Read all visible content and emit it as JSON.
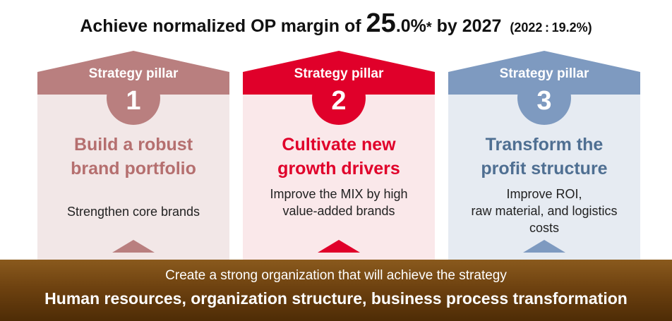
{
  "headline": {
    "lead": "Achieve normalized OP margin of ",
    "big_value": "25",
    "mid_value": ".0%",
    "footnote_mark": "*",
    "tail": " by 2027",
    "reference": "(2022 : 19.2%)"
  },
  "colors": {
    "pillar1": "#b97f7f",
    "pillar2": "#e0002a",
    "pillar3": "#7e9ac0",
    "band": "#6e4210"
  },
  "pillars": [
    {
      "label": "Strategy pillar",
      "number": "1",
      "title_line1": "Build a robust",
      "title_line2": "brand portfolio",
      "desc_lines": [
        "Strengthen core brands"
      ]
    },
    {
      "label": "Strategy pillar",
      "number": "2",
      "title_line1": "Cultivate new",
      "title_line2": "growth drivers",
      "desc_lines": [
        "Improve the MIX by high",
        "value-added brands"
      ]
    },
    {
      "label": "Strategy pillar",
      "number": "3",
      "title_line1": "Transform the",
      "title_line2": "profit structure",
      "desc_lines": [
        "Improve ROI,",
        "raw material, and logistics",
        "costs"
      ]
    }
  ],
  "foundation": {
    "subtitle": "Create a strong organization that will achieve the strategy",
    "title": "Human resources, organization structure, business process transformation"
  }
}
